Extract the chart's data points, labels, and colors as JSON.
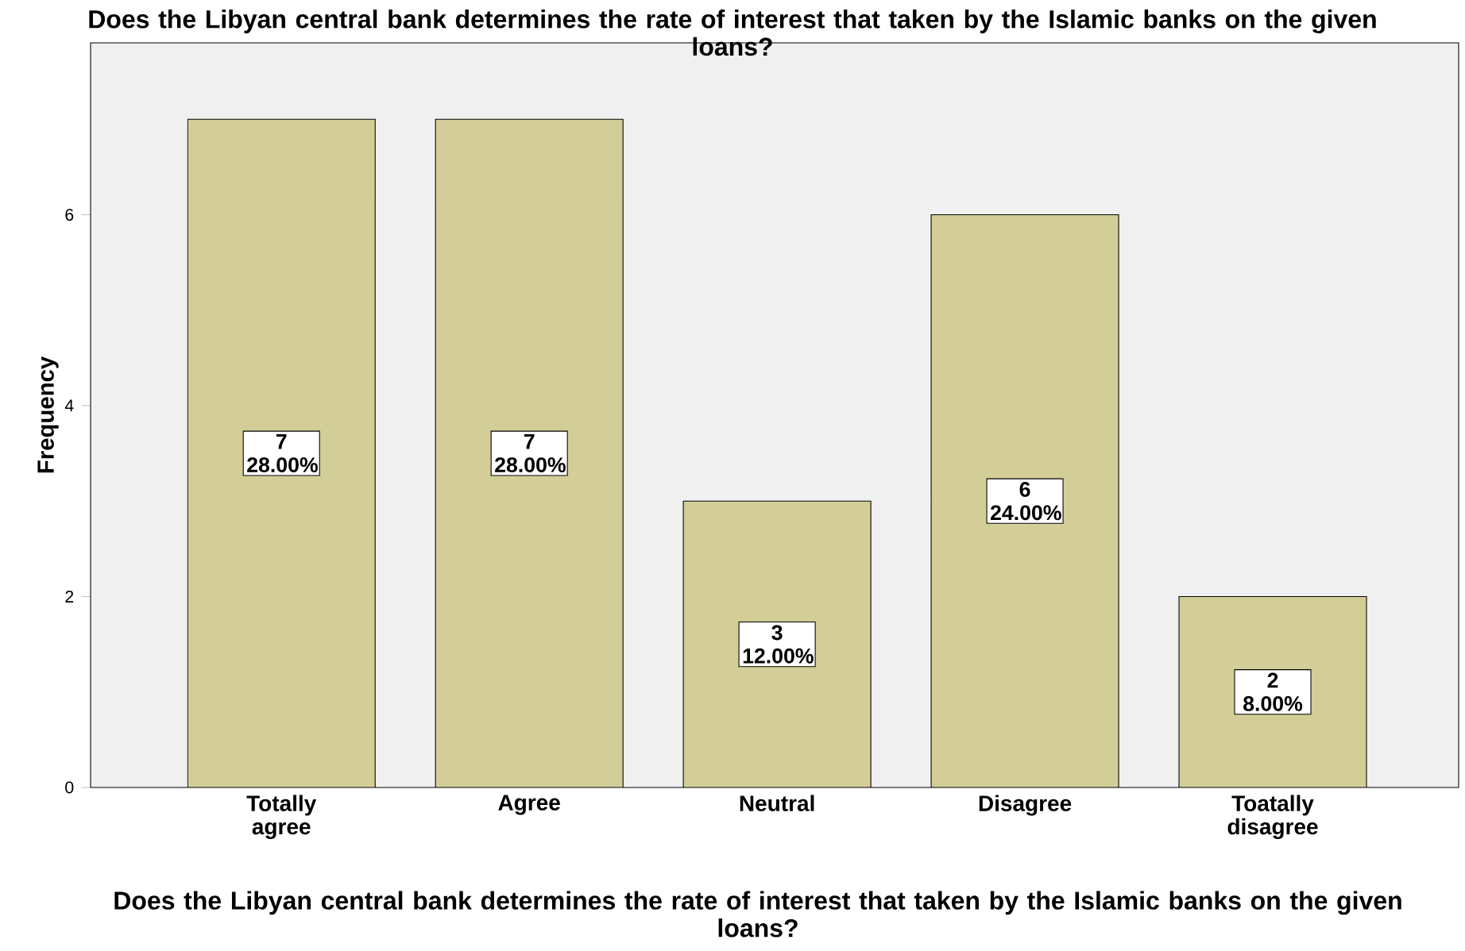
{
  "chart_data": {
    "type": "bar",
    "title": "Does the Libyan central bank determines the rate of interest that taken by the Islamic banks on the given loans?",
    "xlabel": "Does the Libyan central bank determines the rate of interest that taken by the Islamic banks on the given loans?",
    "ylabel": "Frequency",
    "categories": [
      "Totally agree",
      "Agree",
      "Neutral",
      "Disagree",
      "Toatally disagree"
    ],
    "values": [
      7,
      7,
      3,
      6,
      2
    ],
    "value_labels": [
      "7 28.00%",
      "7 28.00%",
      "3 12.00%",
      "6 24.00%",
      "2 8.00%"
    ],
    "color": "#d3ce97",
    "ylim": [
      0,
      7.8
    ],
    "yticks": [
      0,
      2,
      4,
      6
    ],
    "grid": false
  }
}
